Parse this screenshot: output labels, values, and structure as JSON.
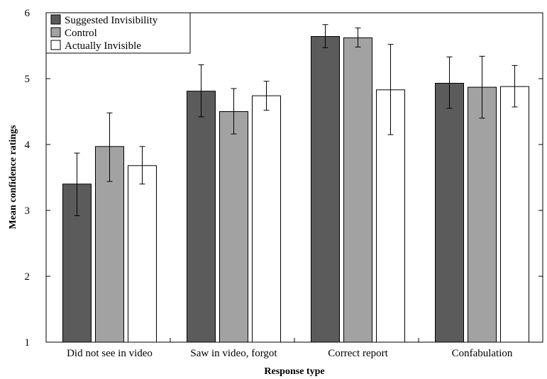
{
  "chart_data": {
    "type": "bar",
    "title": "",
    "xlabel": "Response type",
    "ylabel": "Mean confidence ratings",
    "ylim": [
      1,
      6
    ],
    "yticks": [
      "1",
      "2",
      "3",
      "4",
      "5",
      "6"
    ],
    "grid": false,
    "legend_position": "top-left",
    "categories": [
      "Did not see in video",
      "Saw in video, forgot",
      "Correct report",
      "Confabulation"
    ],
    "series": [
      {
        "name": "Suggested Invisibility",
        "color": "#5b5b5b",
        "values": [
          3.4,
          4.81,
          5.64,
          4.93
        ],
        "error_low": [
          2.92,
          4.42,
          5.47,
          4.55
        ],
        "error_high": [
          3.87,
          5.21,
          5.82,
          5.33
        ]
      },
      {
        "name": "Control",
        "color": "#a2a2a2",
        "values": [
          3.97,
          4.5,
          5.62,
          4.87
        ],
        "error_low": [
          3.44,
          4.16,
          5.48,
          4.4
        ],
        "error_high": [
          4.48,
          4.85,
          5.77,
          5.34
        ]
      },
      {
        "name": "Actually Invisible",
        "color": "#ffffff",
        "values": [
          3.68,
          4.74,
          4.83,
          4.88
        ],
        "error_low": [
          3.4,
          4.52,
          4.15,
          4.57
        ],
        "error_high": [
          3.97,
          4.96,
          5.52,
          5.2
        ]
      }
    ]
  }
}
